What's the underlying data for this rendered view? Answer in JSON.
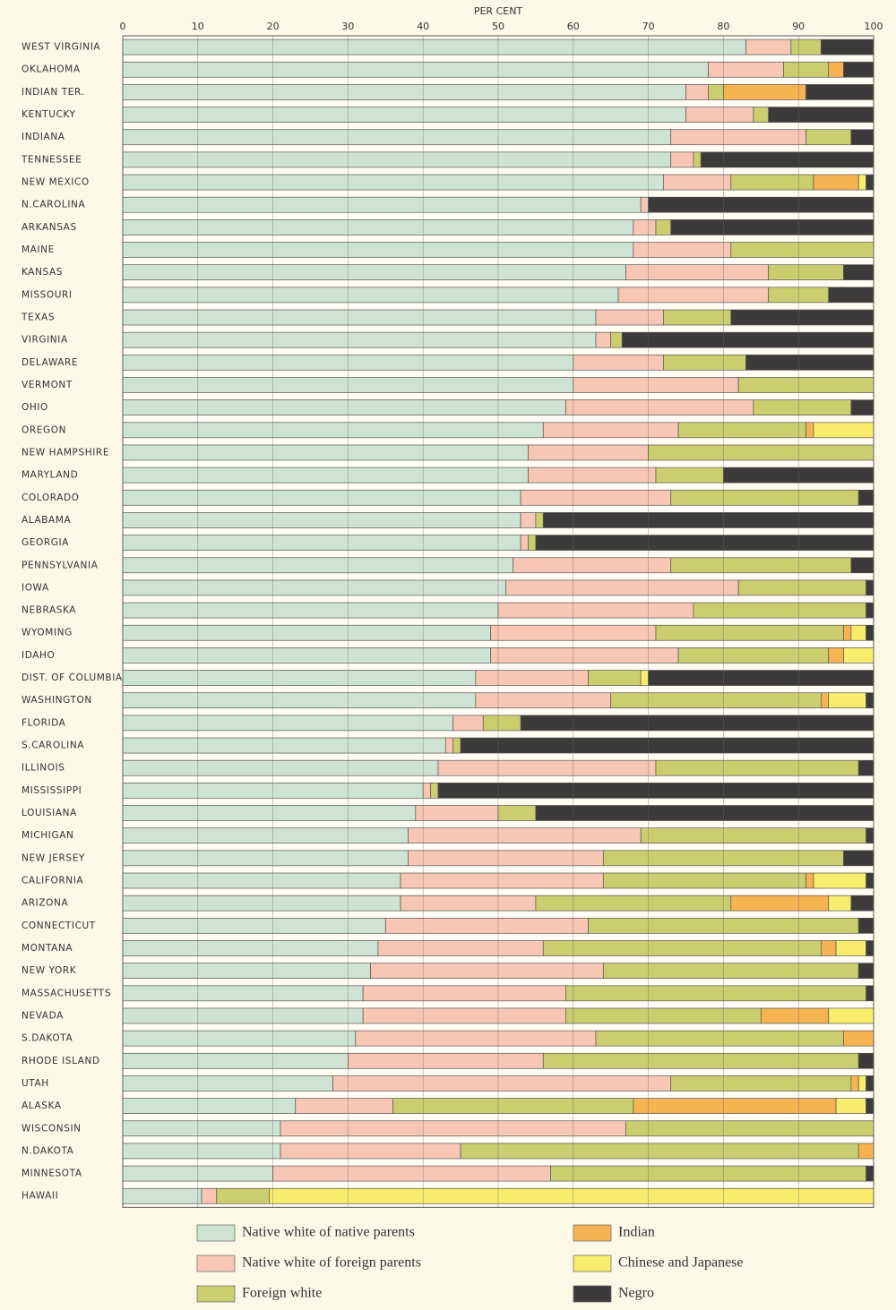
{
  "chart_data": {
    "type": "stacked-bar-horizontal",
    "xlabel": "PER CENT",
    "categories": [
      "WEST VIRGINIA",
      "OKLAHOMA",
      "INDIAN TER.",
      "KENTUCKY",
      "INDIANA",
      "TENNESSEE",
      "NEW MEXICO",
      "N.CAROLINA",
      "ARKANSAS",
      "MAINE",
      "KANSAS",
      "MISSOURI",
      "TEXAS",
      "VIRGINIA",
      "DELAWARE",
      "VERMONT",
      "OHIO",
      "OREGON",
      "NEW HAMPSHIRE",
      "MARYLAND",
      "COLORADO",
      "ALABAMA",
      "GEORGIA",
      "PENNSYLVANIA",
      "IOWA",
      "NEBRASKA",
      "WYOMING",
      "IDAHO",
      "DIST. OF COLUMBIA",
      "WASHINGTON",
      "FLORIDA",
      "S.CAROLINA",
      "ILLINOIS",
      "MISSISSIPPI",
      "LOUISIANA",
      "MICHIGAN",
      "NEW JERSEY",
      "CALIFORNIA",
      "ARIZONA",
      "CONNECTICUT",
      "MONTANA",
      "NEW YORK",
      "MASSACHUSETTS",
      "NEVADA",
      "S.DAKOTA",
      "RHODE ISLAND",
      "UTAH",
      "ALASKA",
      "WISCONSIN",
      "N.DAKOTA",
      "MINNESOTA",
      "HAWAII"
    ],
    "series": [
      {
        "name": "Native white of native parents",
        "color": "#cfe3d2",
        "values": [
          83,
          78,
          75,
          75,
          73,
          73,
          72,
          69,
          68,
          68,
          67,
          66,
          63,
          63,
          60,
          60,
          59,
          56,
          54,
          54,
          53,
          53,
          53,
          52,
          51,
          50,
          49,
          49,
          47,
          47,
          44,
          43,
          42,
          40,
          39,
          38,
          38,
          37,
          37,
          35,
          34,
          33,
          32,
          32,
          31,
          30,
          28,
          23,
          21,
          21,
          20,
          10.5
        ]
      },
      {
        "name": "Native white of foreign parents",
        "color": "#f8c6b4",
        "values": [
          6,
          10,
          3,
          9,
          18,
          3,
          9,
          1,
          3,
          13,
          19,
          20,
          9,
          2,
          12,
          22,
          25,
          18,
          16,
          17,
          20,
          2,
          1,
          21,
          31,
          26,
          22,
          25,
          15,
          18,
          4,
          1,
          29,
          1,
          11,
          31,
          26,
          27,
          18,
          27,
          22,
          31,
          27,
          27,
          32,
          26,
          45,
          13,
          46,
          24,
          37,
          2
        ]
      },
      {
        "name": "Foreign white",
        "color": "#cace6f",
        "values": [
          4,
          6,
          2,
          2,
          6,
          1,
          11,
          0,
          2,
          19,
          10,
          8,
          9,
          1.5,
          11,
          18,
          13,
          17,
          30,
          9,
          25,
          1,
          1,
          24,
          17,
          23,
          25,
          20,
          7,
          28,
          5,
          1,
          27,
          1,
          5,
          30,
          32,
          27,
          26,
          36,
          37,
          34,
          40,
          26,
          33,
          42,
          24,
          32,
          33,
          53,
          42,
          7
        ]
      },
      {
        "name": "Indian",
        "color": "#f6b352",
        "values": [
          0,
          2,
          11,
          0,
          0,
          0,
          6,
          0,
          0,
          0,
          0,
          0,
          0,
          0,
          0,
          0,
          0,
          1,
          0,
          0,
          0,
          0,
          0,
          0,
          0,
          0,
          1,
          2,
          0,
          1,
          0,
          0,
          0,
          0,
          0,
          0,
          0,
          1,
          13,
          0,
          2,
          0,
          0,
          9,
          4,
          0,
          1,
          27,
          0,
          2,
          0,
          0
        ]
      },
      {
        "name": "Chinese and Japanese",
        "color": "#f8ec6d",
        "values": [
          0,
          0,
          0,
          0,
          0,
          0,
          1,
          0,
          0,
          0,
          0,
          0,
          0,
          0,
          0,
          0,
          0,
          8,
          0,
          0,
          0,
          0,
          0,
          0,
          0,
          0,
          2,
          4,
          1,
          5,
          0,
          0,
          0,
          0,
          0,
          0,
          0,
          7,
          3,
          0,
          4,
          0,
          0,
          6,
          0,
          0,
          1,
          4,
          0,
          0,
          0,
          80.5
        ]
      },
      {
        "name": "Negro",
        "color": "#3c3b3a",
        "values": [
          7,
          4,
          9,
          14,
          3,
          23,
          1,
          30,
          27,
          0,
          4,
          6,
          19,
          33.5,
          17,
          0,
          3,
          0,
          0,
          20,
          2,
          44,
          45,
          3,
          1,
          1,
          1,
          0,
          30,
          1,
          47,
          55,
          2,
          58,
          45,
          1,
          4,
          1,
          3,
          2,
          1,
          2,
          1,
          0,
          0,
          2,
          1,
          1,
          0,
          0,
          1,
          0
        ]
      }
    ],
    "xlim": [
      0,
      100
    ],
    "xticks": [
      0,
      10,
      20,
      30,
      40,
      50,
      60,
      70,
      80,
      90,
      100
    ],
    "grid": true
  }
}
